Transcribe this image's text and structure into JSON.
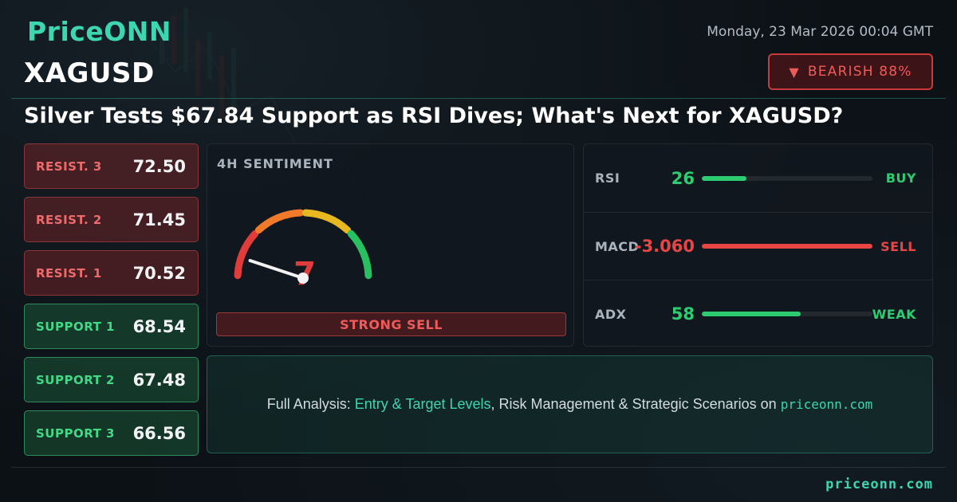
{
  "brand": "PriceONN",
  "datetime": "Monday, 23 Mar 2026 00:04 GMT",
  "symbol": "XAGUSD",
  "bias": {
    "label": "BEARISH 88%",
    "direction": "down",
    "color": "#ef5a5a"
  },
  "headline": "Silver Tests $67.84 Support as RSI Dives; What's Next for XAGUSD?",
  "levels": [
    {
      "label": "RESIST. 3",
      "value": "72.50",
      "type": "resistance"
    },
    {
      "label": "RESIST. 2",
      "value": "71.45",
      "type": "resistance"
    },
    {
      "label": "RESIST. 1",
      "value": "70.52",
      "type": "resistance"
    },
    {
      "label": "SUPPORT 1",
      "value": "68.54",
      "type": "support"
    },
    {
      "label": "SUPPORT 2",
      "value": "67.48",
      "type": "support"
    },
    {
      "label": "SUPPORT 3",
      "value": "66.56",
      "type": "support"
    }
  ],
  "sentiment": {
    "title": "4H SENTIMENT",
    "score": "7",
    "score_value": 7,
    "scale_max": 100,
    "label": "STRONG SELL",
    "gauge_colors": [
      "#e13c3c",
      "#f07a2a",
      "#e8b820",
      "#28c060"
    ]
  },
  "indicators": [
    {
      "name": "RSI",
      "value": "26",
      "signal": "BUY",
      "level": 0.26,
      "color": "#2ecc71"
    },
    {
      "name": "MACD",
      "value": "-3.060",
      "signal": "SELL",
      "level": 1.0,
      "color": "#e84545"
    },
    {
      "name": "ADX",
      "value": "58",
      "signal": "WEAK",
      "level": 0.58,
      "color": "#2ecc71"
    }
  ],
  "cta": {
    "prefix": "Full Analysis: ",
    "highlight": "Entry & Target Levels",
    "middle": ", Risk Management & Strategic Scenarios on ",
    "site": "priceonn.com"
  },
  "footer_site": "priceonn.com"
}
